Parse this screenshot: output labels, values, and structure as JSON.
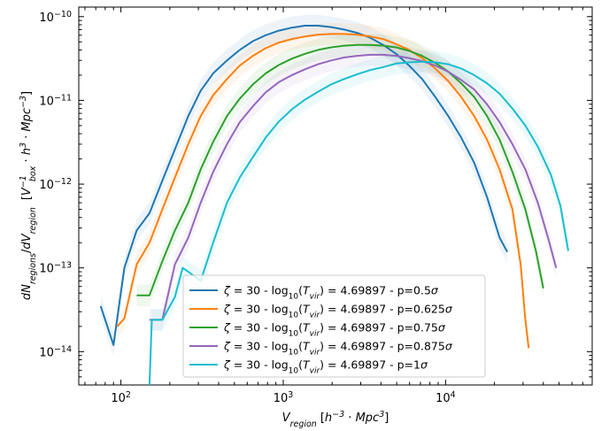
{
  "chart_data": {
    "type": "line",
    "xlabel": "V_region [h^-3 · Mpc^3]",
    "ylabel": "dN_regions/dV_region [V_box^-1 · h^3 · Mpc^-3]",
    "x_scale": "log",
    "y_scale": "log",
    "xlim": [
      55,
      80000
    ],
    "ylim": [
      4e-15,
      1.3e-10
    ],
    "x_ticks": [
      {
        "value": 100,
        "mant": "10",
        "exp": "2"
      },
      {
        "value": 1000,
        "mant": "10",
        "exp": "3"
      },
      {
        "value": 10000,
        "mant": "10",
        "exp": "4"
      }
    ],
    "y_ticks": [
      {
        "value": 1e-14,
        "mant": "10",
        "exp": "−14"
      },
      {
        "value": 1e-13,
        "mant": "10",
        "exp": "−13"
      },
      {
        "value": 1e-12,
        "mant": "10",
        "exp": "−12"
      },
      {
        "value": 1e-11,
        "mant": "10",
        "exp": "−11"
      },
      {
        "value": 1e-10,
        "mant": "10",
        "exp": "−10"
      }
    ],
    "legend_position": "lower-center",
    "series": [
      {
        "name": "ζ = 30 - log10(T_vir) = 4.69897 - p=0.5σ",
        "color": "#1f77b4",
        "points": [
          [
            75,
            3.5e-14
          ],
          [
            90,
            1.2e-14
          ],
          [
            105,
            1e-13
          ],
          [
            125,
            2.8e-13
          ],
          [
            150,
            4.5e-13
          ],
          [
            180,
            1.1e-12
          ],
          [
            215,
            2.6e-12
          ],
          [
            260,
            6.5e-12
          ],
          [
            310,
            1.3e-11
          ],
          [
            370,
            2.1e-11
          ],
          [
            450,
            3e-11
          ],
          [
            540,
            4e-11
          ],
          [
            650,
            5.1e-11
          ],
          [
            780,
            6e-11
          ],
          [
            940,
            6.8e-11
          ],
          [
            1130,
            7.4e-11
          ],
          [
            1360,
            7.8e-11
          ],
          [
            1640,
            7.8e-11
          ],
          [
            1970,
            7.5e-11
          ],
          [
            2370,
            7e-11
          ],
          [
            2850,
            6.4e-11
          ],
          [
            3430,
            5.6e-11
          ],
          [
            4120,
            4.6e-11
          ],
          [
            4960,
            3.6e-11
          ],
          [
            5960,
            2.6e-11
          ],
          [
            7170,
            1.8e-11
          ],
          [
            8630,
            1.1e-11
          ],
          [
            10380,
            6.5e-12
          ],
          [
            12480,
            3.6e-12
          ],
          [
            15000,
            1.8e-12
          ],
          [
            18000,
            7e-13
          ],
          [
            21500,
            2.3e-13
          ],
          [
            24000,
            1.55e-13
          ]
        ]
      },
      {
        "name": "ζ = 30 - log10(T_vir) = 4.69897 - p=0.625σ",
        "color": "#ff7f0e",
        "points": [
          [
            95,
            2e-14
          ],
          [
            105,
            2.5e-14
          ],
          [
            125,
            1.1e-13
          ],
          [
            150,
            2e-13
          ],
          [
            180,
            5e-13
          ],
          [
            215,
            1.2e-12
          ],
          [
            260,
            3e-12
          ],
          [
            310,
            6.5e-12
          ],
          [
            370,
            1.15e-11
          ],
          [
            450,
            1.8e-11
          ],
          [
            540,
            2.6e-11
          ],
          [
            650,
            3.4e-11
          ],
          [
            780,
            4.2e-11
          ],
          [
            940,
            4.9e-11
          ],
          [
            1130,
            5.4e-11
          ],
          [
            1360,
            5.8e-11
          ],
          [
            1640,
            6.1e-11
          ],
          [
            1970,
            6.2e-11
          ],
          [
            2370,
            6.2e-11
          ],
          [
            2850,
            6.1e-11
          ],
          [
            3430,
            5.8e-11
          ],
          [
            4120,
            5.4e-11
          ],
          [
            4960,
            4.7e-11
          ],
          [
            5960,
            4e-11
          ],
          [
            7170,
            3.2e-11
          ],
          [
            8630,
            2.4e-11
          ],
          [
            10380,
            1.7e-11
          ],
          [
            12480,
            1.1e-11
          ],
          [
            15000,
            6.5e-12
          ],
          [
            18000,
            3.4e-12
          ],
          [
            21500,
            1.5e-12
          ],
          [
            25800,
            5e-13
          ],
          [
            29000,
            1.1e-13
          ],
          [
            31000,
            2.4e-14
          ],
          [
            32500,
            1.1e-14
          ]
        ]
      },
      {
        "name": "ζ = 30 - log10(T_vir) = 4.69897 - p=0.75σ",
        "color": "#2ca02c",
        "points": [
          [
            125,
            4.7e-14
          ],
          [
            150,
            4.7e-14
          ],
          [
            180,
            1.2e-13
          ],
          [
            215,
            2.8e-13
          ],
          [
            260,
            6e-13
          ],
          [
            310,
            1.5e-12
          ],
          [
            370,
            3.2e-12
          ],
          [
            450,
            6.5e-12
          ],
          [
            540,
            1.05e-11
          ],
          [
            650,
            1.55e-11
          ],
          [
            780,
            2.1e-11
          ],
          [
            940,
            2.65e-11
          ],
          [
            1130,
            3.15e-11
          ],
          [
            1360,
            3.6e-11
          ],
          [
            1640,
            4e-11
          ],
          [
            1970,
            4.3e-11
          ],
          [
            2370,
            4.5e-11
          ],
          [
            2850,
            4.6e-11
          ],
          [
            3430,
            4.6e-11
          ],
          [
            4120,
            4.5e-11
          ],
          [
            4960,
            4.3e-11
          ],
          [
            5960,
            3.9e-11
          ],
          [
            7170,
            3.4e-11
          ],
          [
            8630,
            2.8e-11
          ],
          [
            10380,
            2.2e-11
          ],
          [
            12480,
            1.6e-11
          ],
          [
            15000,
            1.1e-11
          ],
          [
            18000,
            6.5e-12
          ],
          [
            21500,
            3.4e-12
          ],
          [
            25800,
            1.4e-12
          ],
          [
            31000,
            5e-13
          ],
          [
            36000,
            1.6e-13
          ],
          [
            40000,
            5.7e-14
          ]
        ]
      },
      {
        "name": "ζ = 30 - log10(T_vir) = 4.69897 - p=0.875σ",
        "color": "#9467bd",
        "points": [
          [
            150,
            2.4e-14
          ],
          [
            180,
            2.4e-14
          ],
          [
            215,
            1.1e-13
          ],
          [
            260,
            2.3e-13
          ],
          [
            310,
            6e-13
          ],
          [
            370,
            1.4e-12
          ],
          [
            450,
            3e-12
          ],
          [
            540,
            5.5e-12
          ],
          [
            650,
            8.5e-12
          ],
          [
            780,
            1.25e-11
          ],
          [
            940,
            1.65e-11
          ],
          [
            1130,
            2e-11
          ],
          [
            1360,
            2.35e-11
          ],
          [
            1640,
            2.7e-11
          ],
          [
            1970,
            3e-11
          ],
          [
            2370,
            3.25e-11
          ],
          [
            2850,
            3.4e-11
          ],
          [
            3430,
            3.5e-11
          ],
          [
            4120,
            3.5e-11
          ],
          [
            4960,
            3.4e-11
          ],
          [
            5960,
            3.2e-11
          ],
          [
            7170,
            2.95e-11
          ],
          [
            8630,
            2.6e-11
          ],
          [
            10380,
            2.2e-11
          ],
          [
            12480,
            1.75e-11
          ],
          [
            15000,
            1.35e-11
          ],
          [
            18000,
            9e-12
          ],
          [
            21500,
            5.5e-12
          ],
          [
            25800,
            3e-12
          ],
          [
            31000,
            1.5e-12
          ],
          [
            37000,
            6e-13
          ],
          [
            43000,
            2.2e-13
          ],
          [
            48000,
            1e-13
          ]
        ]
      },
      {
        "name": "ζ = 30 - log10(T_vir) = 4.69897 - p=1σ",
        "color": "#17becf",
        "points": [
          [
            150,
            4e-15
          ],
          [
            155,
            2.4e-14
          ],
          [
            180,
            2.4e-14
          ],
          [
            215,
            4.5e-14
          ],
          [
            240,
            1e-13
          ],
          [
            260,
            9e-14
          ],
          [
            310,
            7e-14
          ],
          [
            370,
            2e-13
          ],
          [
            450,
            6e-13
          ],
          [
            540,
            1.2e-12
          ],
          [
            650,
            2.1e-12
          ],
          [
            780,
            3.6e-12
          ],
          [
            940,
            5.6e-12
          ],
          [
            1130,
            7.8e-12
          ],
          [
            1360,
            1.02e-11
          ],
          [
            1640,
            1.27e-11
          ],
          [
            1970,
            1.55e-11
          ],
          [
            2370,
            1.8e-11
          ],
          [
            2850,
            2.05e-11
          ],
          [
            3430,
            2.3e-11
          ],
          [
            4120,
            2.5e-11
          ],
          [
            4960,
            2.75e-11
          ],
          [
            5960,
            2.85e-11
          ],
          [
            7170,
            2.9e-11
          ],
          [
            8630,
            2.85e-11
          ],
          [
            10380,
            2.7e-11
          ],
          [
            12480,
            2.4e-11
          ],
          [
            15000,
            2e-11
          ],
          [
            18000,
            1.6e-11
          ],
          [
            21500,
            1.2e-11
          ],
          [
            25800,
            8e-12
          ],
          [
            31000,
            5e-12
          ],
          [
            37000,
            2.8e-12
          ],
          [
            44500,
            1.3e-12
          ],
          [
            51000,
            5.5e-13
          ],
          [
            57000,
            1.6e-13
          ]
        ]
      }
    ]
  }
}
